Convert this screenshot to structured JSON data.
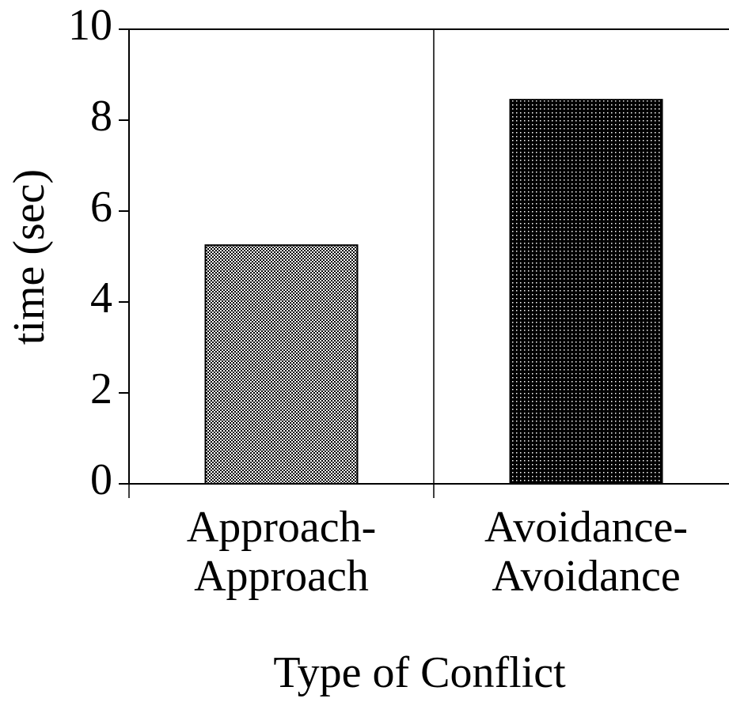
{
  "chart_data": {
    "type": "bar",
    "categories": [
      "Approach-Approach",
      "Avoidance-Avoidance"
    ],
    "values": [
      5.25,
      8.45
    ],
    "xlabel": "Type of Conflict",
    "ylabel": "time (sec)",
    "ylim": [
      0,
      10
    ],
    "yticks": [
      0,
      2,
      4,
      6,
      8,
      10
    ]
  }
}
